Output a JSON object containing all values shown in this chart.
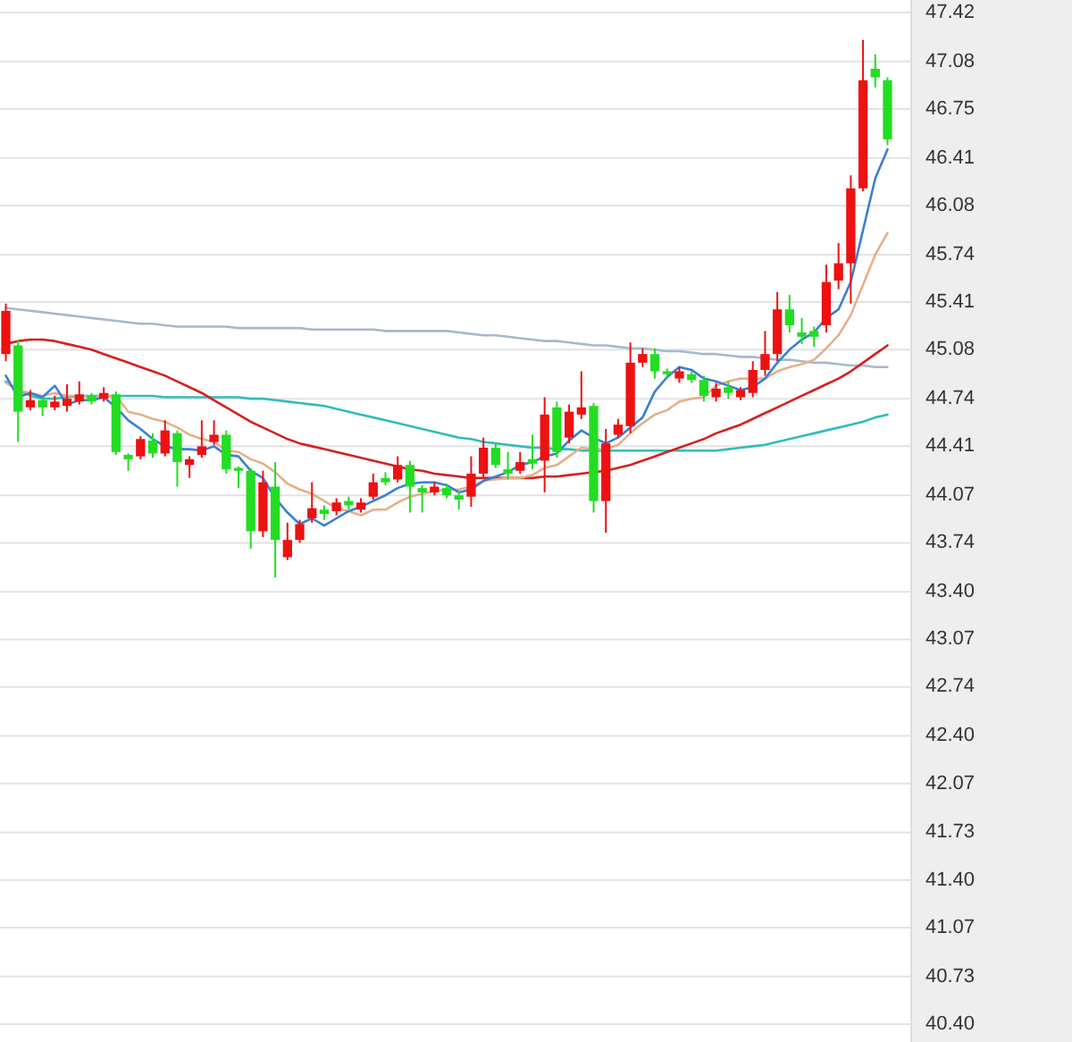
{
  "chart_data": {
    "type": "candlestick",
    "categories": [
      null,
      null,
      null,
      null,
      null,
      null,
      null,
      null,
      null,
      null,
      null,
      null,
      null,
      null,
      null,
      null,
      null,
      null,
      null,
      null,
      null,
      null,
      null,
      null,
      null,
      null,
      null,
      null,
      null,
      null,
      null,
      null,
      null,
      null,
      null,
      null,
      null,
      null,
      null,
      null,
      null,
      null,
      null,
      null,
      null,
      null,
      null,
      null,
      null,
      null,
      null,
      null,
      null,
      null,
      null,
      null,
      null,
      null,
      null,
      null,
      null,
      null,
      null,
      null,
      null,
      null,
      null,
      null,
      null,
      null,
      null,
      null,
      null
    ],
    "ohlc": [
      [
        45.05,
        45.4,
        45.0,
        45.35
      ],
      [
        45.11,
        45.15,
        44.44,
        44.65
      ],
      [
        44.68,
        44.8,
        44.66,
        44.73
      ],
      [
        44.73,
        44.75,
        44.62,
        44.68
      ],
      [
        44.68,
        44.76,
        44.66,
        44.72
      ],
      [
        44.69,
        44.84,
        44.65,
        44.74
      ],
      [
        44.72,
        44.86,
        44.7,
        44.77
      ],
      [
        44.76,
        44.78,
        44.7,
        44.72
      ],
      [
        44.74,
        44.82,
        44.72,
        44.78
      ],
      [
        44.77,
        44.79,
        44.35,
        44.37
      ],
      [
        44.35,
        44.36,
        44.24,
        44.32
      ],
      [
        44.34,
        44.48,
        44.32,
        44.46
      ],
      [
        44.45,
        44.5,
        44.33,
        44.36
      ],
      [
        44.36,
        44.59,
        44.34,
        44.52
      ],
      [
        44.5,
        44.52,
        44.13,
        44.3
      ],
      [
        44.28,
        44.34,
        44.19,
        44.32
      ],
      [
        44.35,
        44.59,
        44.33,
        44.41
      ],
      [
        44.44,
        44.59,
        44.42,
        44.49
      ],
      [
        44.49,
        44.52,
        44.22,
        44.25
      ],
      [
        44.26,
        44.27,
        44.12,
        44.24
      ],
      [
        44.24,
        44.26,
        43.7,
        43.82
      ],
      [
        43.82,
        44.24,
        43.78,
        44.16
      ],
      [
        44.13,
        44.3,
        43.5,
        43.76
      ],
      [
        43.64,
        43.88,
        43.62,
        43.76
      ],
      [
        43.76,
        43.9,
        43.74,
        43.87
      ],
      [
        43.91,
        44.16,
        43.88,
        43.98
      ],
      [
        43.97,
        44.0,
        43.9,
        43.94
      ],
      [
        43.96,
        44.05,
        43.93,
        44.02
      ],
      [
        44.03,
        44.06,
        43.97,
        44.0
      ],
      [
        43.97,
        44.05,
        43.95,
        44.02
      ],
      [
        44.06,
        44.22,
        44.04,
        44.16
      ],
      [
        44.19,
        44.23,
        44.14,
        44.16
      ],
      [
        44.18,
        44.34,
        44.16,
        44.28
      ],
      [
        44.28,
        44.31,
        43.95,
        44.13
      ],
      [
        44.12,
        44.14,
        43.95,
        44.09
      ],
      [
        44.09,
        44.16,
        44.07,
        44.13
      ],
      [
        44.12,
        44.15,
        44.05,
        44.07
      ],
      [
        44.07,
        44.1,
        43.97,
        44.04
      ],
      [
        44.06,
        44.34,
        43.99,
        44.22
      ],
      [
        44.22,
        44.47,
        44.19,
        44.4
      ],
      [
        44.4,
        44.43,
        44.26,
        44.28
      ],
      [
        44.25,
        44.37,
        44.18,
        44.22
      ],
      [
        44.24,
        44.37,
        44.22,
        44.3
      ],
      [
        44.32,
        44.49,
        44.25,
        44.29
      ],
      [
        44.31,
        44.75,
        44.09,
        44.63
      ],
      [
        44.68,
        44.72,
        44.33,
        44.37
      ],
      [
        44.47,
        44.7,
        44.43,
        44.65
      ],
      [
        44.63,
        44.93,
        44.6,
        44.68
      ],
      [
        44.69,
        44.71,
        43.95,
        44.03
      ],
      [
        44.03,
        44.53,
        43.81,
        44.43
      ],
      [
        44.49,
        44.6,
        44.47,
        44.56
      ],
      [
        44.55,
        45.13,
        44.5,
        44.99
      ],
      [
        44.99,
        45.09,
        44.96,
        45.05
      ],
      [
        45.05,
        45.09,
        44.88,
        44.93
      ],
      [
        44.93,
        44.95,
        44.88,
        44.91
      ],
      [
        44.88,
        44.96,
        44.85,
        44.93
      ],
      [
        44.91,
        44.93,
        44.85,
        44.87
      ],
      [
        44.87,
        44.9,
        44.72,
        44.76
      ],
      [
        44.75,
        44.85,
        44.72,
        44.81
      ],
      [
        44.82,
        44.86,
        44.74,
        44.78
      ],
      [
        44.75,
        44.82,
        44.73,
        44.8
      ],
      [
        44.78,
        45.0,
        44.75,
        44.94
      ],
      [
        44.94,
        45.21,
        44.9,
        45.05
      ],
      [
        45.05,
        45.48,
        45.0,
        45.36
      ],
      [
        45.36,
        45.46,
        45.2,
        45.25
      ],
      [
        45.2,
        45.3,
        45.12,
        45.17
      ],
      [
        45.21,
        45.24,
        45.1,
        45.17
      ],
      [
        45.25,
        45.67,
        45.2,
        45.55
      ],
      [
        45.56,
        45.82,
        45.5,
        45.68
      ],
      [
        45.68,
        46.29,
        45.4,
        46.2
      ],
      [
        46.2,
        47.23,
        46.18,
        46.95
      ],
      [
        47.03,
        47.13,
        46.9,
        46.97
      ],
      [
        46.95,
        46.97,
        46.5,
        46.54
      ]
    ],
    "colors": [
      "#ee1111",
      "#22dd22",
      "#ee1111",
      "#22dd22",
      "#ee1111",
      "#ee1111",
      "#ee1111",
      "#22dd22",
      "#ee1111",
      "#22dd22",
      "#22dd22",
      "#ee1111",
      "#22dd22",
      "#ee1111",
      "#22dd22",
      "#ee1111",
      "#ee1111",
      "#ee1111",
      "#22dd22",
      "#22dd22",
      "#22dd22",
      "#ee1111",
      "#22dd22",
      "#ee1111",
      "#ee1111",
      "#ee1111",
      "#22dd22",
      "#ee1111",
      "#22dd22",
      "#ee1111",
      "#ee1111",
      "#22dd22",
      "#ee1111",
      "#22dd22",
      "#22dd22",
      "#ee1111",
      "#22dd22",
      "#22dd22",
      "#ee1111",
      "#ee1111",
      "#22dd22",
      "#22dd22",
      "#ee1111",
      "#22dd22",
      "#ee1111",
      "#22dd22",
      "#ee1111",
      "#ee1111",
      "#22dd22",
      "#ee1111",
      "#ee1111",
      "#ee1111",
      "#ee1111",
      "#22dd22",
      "#22dd22",
      "#ee1111",
      "#22dd22",
      "#22dd22",
      "#ee1111",
      "#22dd22",
      "#ee1111",
      "#ee1111",
      "#ee1111",
      "#ee1111",
      "#22dd22",
      "#22dd22",
      "#22dd22",
      "#ee1111",
      "#ee1111",
      "#ee1111",
      "#ee1111",
      "#22dd22",
      "#22dd22"
    ],
    "series": [
      {
        "type": "line",
        "color": "#a8b8cc",
        "values": [
          45.37,
          45.36,
          45.35,
          45.34,
          45.33,
          45.32,
          45.31,
          45.3,
          45.29,
          45.28,
          45.27,
          45.26,
          45.26,
          45.25,
          45.24,
          45.24,
          45.24,
          45.24,
          45.24,
          45.23,
          45.23,
          45.23,
          45.23,
          45.23,
          45.23,
          45.22,
          45.22,
          45.22,
          45.22,
          45.22,
          45.22,
          45.21,
          45.21,
          45.21,
          45.21,
          45.21,
          45.21,
          45.2,
          45.19,
          45.18,
          45.18,
          45.17,
          45.16,
          45.15,
          45.14,
          45.14,
          45.13,
          45.12,
          45.11,
          45.11,
          45.1,
          45.09,
          45.09,
          45.08,
          45.07,
          45.07,
          45.06,
          45.05,
          45.05,
          45.04,
          45.03,
          45.03,
          45.02,
          45.01,
          45.01,
          45.0,
          44.99,
          44.99,
          44.98,
          44.97,
          44.97,
          44.96,
          44.96
        ]
      },
      {
        "type": "line",
        "color": "#33bbbb",
        "values": [
          44.86,
          44.8,
          44.76,
          44.74,
          44.74,
          44.75,
          44.76,
          44.76,
          44.76,
          44.76,
          44.76,
          44.76,
          44.76,
          44.75,
          44.75,
          44.75,
          44.75,
          44.75,
          44.75,
          44.75,
          44.74,
          44.74,
          44.73,
          44.72,
          44.71,
          44.7,
          44.69,
          44.67,
          44.65,
          44.63,
          44.61,
          44.59,
          44.57,
          44.55,
          44.53,
          44.51,
          44.49,
          44.47,
          44.46,
          44.44,
          44.43,
          44.42,
          44.41,
          44.4,
          44.4,
          44.39,
          44.39,
          44.38,
          44.38,
          44.38,
          44.38,
          44.38,
          44.38,
          44.38,
          44.38,
          44.38,
          44.38,
          44.38,
          44.38,
          44.39,
          44.4,
          44.41,
          44.42,
          44.44,
          44.46,
          44.48,
          44.5,
          44.52,
          44.54,
          44.56,
          44.58,
          44.61,
          44.63
        ]
      },
      {
        "type": "line",
        "color": "#d62020",
        "values": [
          45.12,
          45.14,
          45.15,
          45.15,
          45.14,
          45.12,
          45.1,
          45.08,
          45.05,
          45.02,
          44.99,
          44.96,
          44.93,
          44.9,
          44.86,
          44.82,
          44.78,
          44.73,
          44.68,
          44.63,
          44.58,
          44.54,
          44.5,
          44.46,
          44.43,
          44.41,
          44.39,
          44.37,
          44.35,
          44.33,
          44.31,
          44.29,
          44.27,
          44.25,
          44.24,
          44.22,
          44.21,
          44.2,
          44.19,
          44.19,
          44.19,
          44.19,
          44.19,
          44.19,
          44.2,
          44.2,
          44.21,
          44.22,
          44.23,
          44.24,
          44.26,
          44.28,
          44.31,
          44.34,
          44.37,
          44.4,
          44.43,
          44.46,
          44.5,
          44.53,
          44.56,
          44.6,
          44.64,
          44.68,
          44.72,
          44.76,
          44.8,
          44.84,
          44.88,
          44.93,
          44.99,
          45.05,
          45.11
        ]
      },
      {
        "type": "line",
        "color": "#e6b08a",
        "values": [
          44.85,
          44.8,
          44.78,
          44.76,
          44.78,
          44.76,
          44.76,
          44.75,
          44.76,
          44.76,
          44.65,
          44.63,
          44.6,
          44.58,
          44.54,
          44.49,
          44.46,
          44.44,
          44.38,
          44.37,
          44.32,
          44.29,
          44.23,
          44.15,
          44.11,
          44.08,
          44.03,
          43.98,
          43.96,
          43.93,
          43.97,
          43.97,
          44.02,
          44.06,
          44.08,
          44.1,
          44.11,
          44.11,
          44.13,
          44.17,
          44.18,
          44.19,
          44.19,
          44.21,
          44.26,
          44.28,
          44.34,
          44.4,
          44.39,
          44.39,
          44.42,
          44.5,
          44.57,
          44.63,
          44.66,
          44.72,
          44.74,
          44.75,
          44.83,
          44.86,
          44.88,
          44.88,
          44.88,
          44.93,
          44.96,
          44.98,
          45.01,
          45.09,
          45.18,
          45.32,
          45.53,
          45.74,
          45.89
        ]
      },
      {
        "type": "line",
        "color": "#3a7fd5",
        "values": [
          44.9,
          44.75,
          44.78,
          44.75,
          44.83,
          44.7,
          44.73,
          44.73,
          44.75,
          44.68,
          44.59,
          44.53,
          44.46,
          44.41,
          44.39,
          44.39,
          44.38,
          44.41,
          44.35,
          44.34,
          44.24,
          44.19,
          44.05,
          43.95,
          43.87,
          43.91,
          43.86,
          43.91,
          43.96,
          43.99,
          44.03,
          44.07,
          44.12,
          44.15,
          44.16,
          44.16,
          44.14,
          44.09,
          44.11,
          44.17,
          44.2,
          44.23,
          44.28,
          44.3,
          44.34,
          44.36,
          44.45,
          44.52,
          44.47,
          44.43,
          44.47,
          44.54,
          44.61,
          44.79,
          44.89,
          44.96,
          44.94,
          44.88,
          44.86,
          44.83,
          44.8,
          44.82,
          44.88,
          44.99,
          45.08,
          45.15,
          45.2,
          45.3,
          45.36,
          45.55,
          45.91,
          46.27,
          46.47
        ]
      }
    ],
    "ylim": [
      40.4,
      47.42
    ],
    "yticks": [
      47.42,
      47.08,
      46.75,
      46.41,
      46.08,
      45.74,
      45.41,
      45.08,
      44.74,
      44.41,
      44.07,
      43.74,
      {
        "value": 43.4,
        "label": "43.40"
      },
      43.07,
      42.74,
      {
        "value": 42.4,
        "label": "42.40"
      },
      42.07,
      41.73,
      {
        "value": 41.4,
        "label": "41.40"
      },
      41.07,
      40.73,
      {
        "value": 40.4,
        "label": "40.40"
      }
    ],
    "grid": "y",
    "tick_labels": "y"
  }
}
